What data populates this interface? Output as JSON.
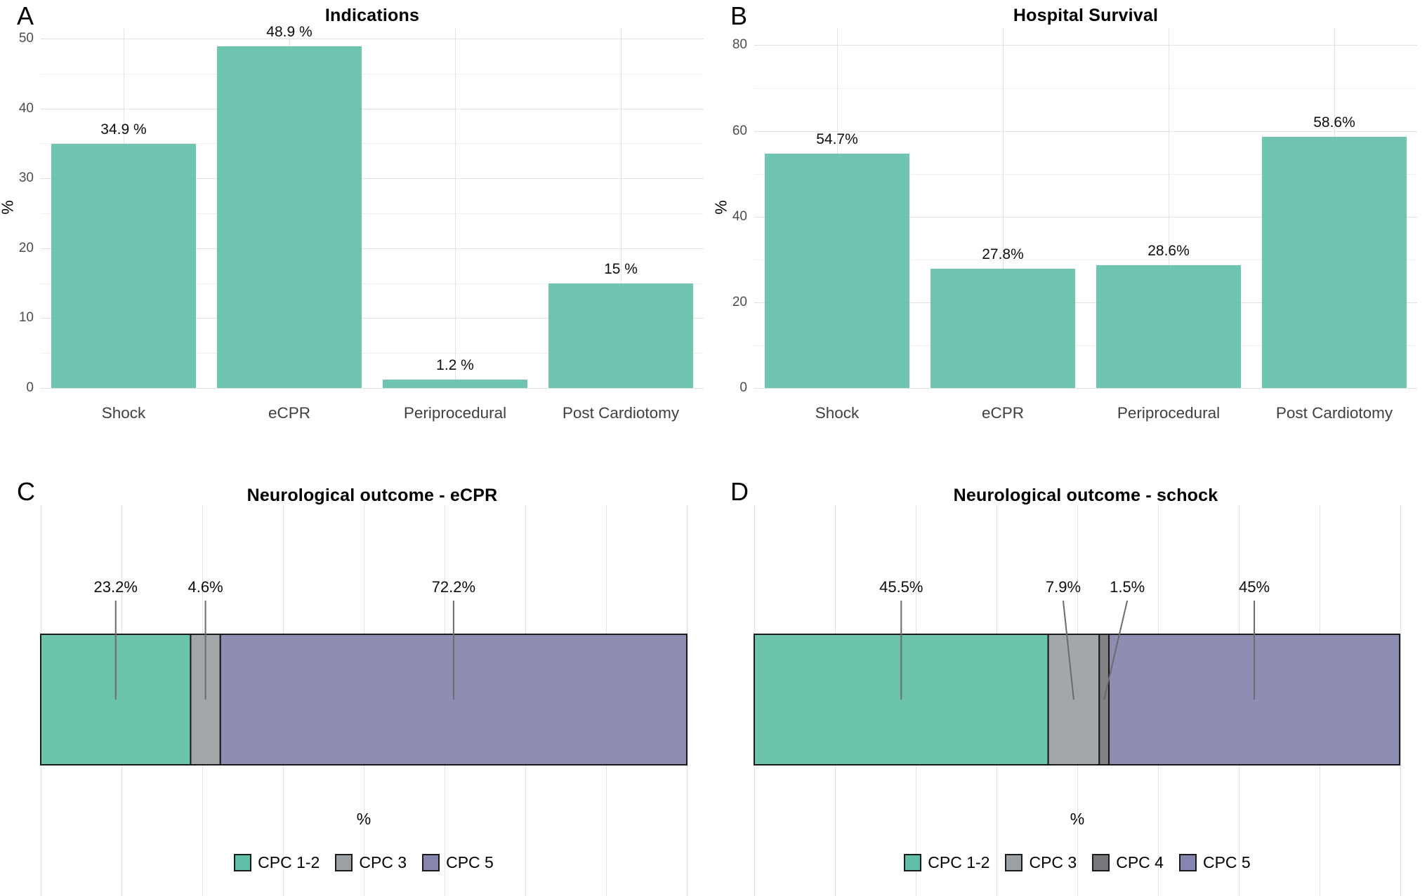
{
  "colors": {
    "teal": "#61BFA7",
    "gray": "#9BA0A4",
    "dark_gray": "#78787C",
    "purple": "#8585AF",
    "grid_major": "#E2E2E2",
    "grid_minor": "#F0F0F0",
    "axis_text": "#4D4D4D",
    "leader_line": "#6B6B6B",
    "bar_outline": "#1A1A1A"
  },
  "chart_data": [
    {
      "type": "bar",
      "panel_label": "A",
      "title": "Indications",
      "ylabel": "%",
      "categories": [
        "Shock",
        "eCPR",
        "Periprocedural",
        "Post Cardiotomy"
      ],
      "values": [
        34.9,
        48.9,
        1.2,
        15
      ],
      "value_labels": [
        "34.9 %",
        "48.9 %",
        "1.2 %",
        "15 %"
      ],
      "ylim": [
        0,
        51.5
      ],
      "yticks": [
        0,
        10,
        20,
        30,
        40,
        50
      ],
      "yticks_minor": [
        5,
        15,
        25,
        35,
        45
      ],
      "bar_color": "teal",
      "grid": "horizontal major+minor, vertical at categories",
      "legend_position": "none"
    },
    {
      "type": "bar",
      "panel_label": "B",
      "title": "Hospital Survival",
      "ylabel": "%",
      "categories": [
        "Shock",
        "eCPR",
        "Periprocedural",
        "Post Cardiotomy"
      ],
      "values": [
        54.7,
        27.8,
        28.6,
        58.6
      ],
      "value_labels": [
        "54.7%",
        "27.8%",
        "28.6%",
        "58.6%"
      ],
      "ylim": [
        0,
        84
      ],
      "yticks": [
        0,
        20,
        40,
        60,
        80
      ],
      "yticks_minor": [
        10,
        30,
        50,
        70
      ],
      "bar_color": "teal",
      "grid": "horizontal major+minor, vertical at categories",
      "legend_position": "none"
    },
    {
      "type": "stacked_bar",
      "orientation": "horizontal",
      "panel_label": "C",
      "title": "Neurological outcome - eCPR",
      "xlabel": "%",
      "xlim": [
        0,
        100
      ],
      "grid_step": 12.5,
      "segments": [
        {
          "name": "CPC 1-2",
          "value": 23.2,
          "label": "23.2%",
          "color": "teal",
          "label_dx": 0
        },
        {
          "name": "CPC 3",
          "value": 4.6,
          "label": "4.6%",
          "color": "gray",
          "label_dx": 0
        },
        {
          "name": "CPC 5",
          "value": 72.2,
          "label": "72.2%",
          "color": "purple",
          "label_dx": 0
        }
      ],
      "legend_position": "bottom"
    },
    {
      "type": "stacked_bar",
      "orientation": "horizontal",
      "panel_label": "D",
      "title": "Neurological outcome - schock",
      "xlabel": "%",
      "xlim": [
        0,
        100
      ],
      "grid_step": 12.5,
      "segments": [
        {
          "name": "CPC 1-2",
          "value": 45.5,
          "label": "45.5%",
          "color": "teal",
          "label_dx": 0
        },
        {
          "name": "CPC 3",
          "value": 7.9,
          "label": "7.9%",
          "color": "gray",
          "label_dx": -15
        },
        {
          "name": "CPC 4",
          "value": 1.5,
          "label": "1.5%",
          "color": "dark_gray",
          "label_dx": 33
        },
        {
          "name": "CPC 5",
          "value": 45,
          "label": "45%",
          "color": "purple",
          "label_dx": 0
        }
      ],
      "legend_position": "bottom"
    }
  ]
}
